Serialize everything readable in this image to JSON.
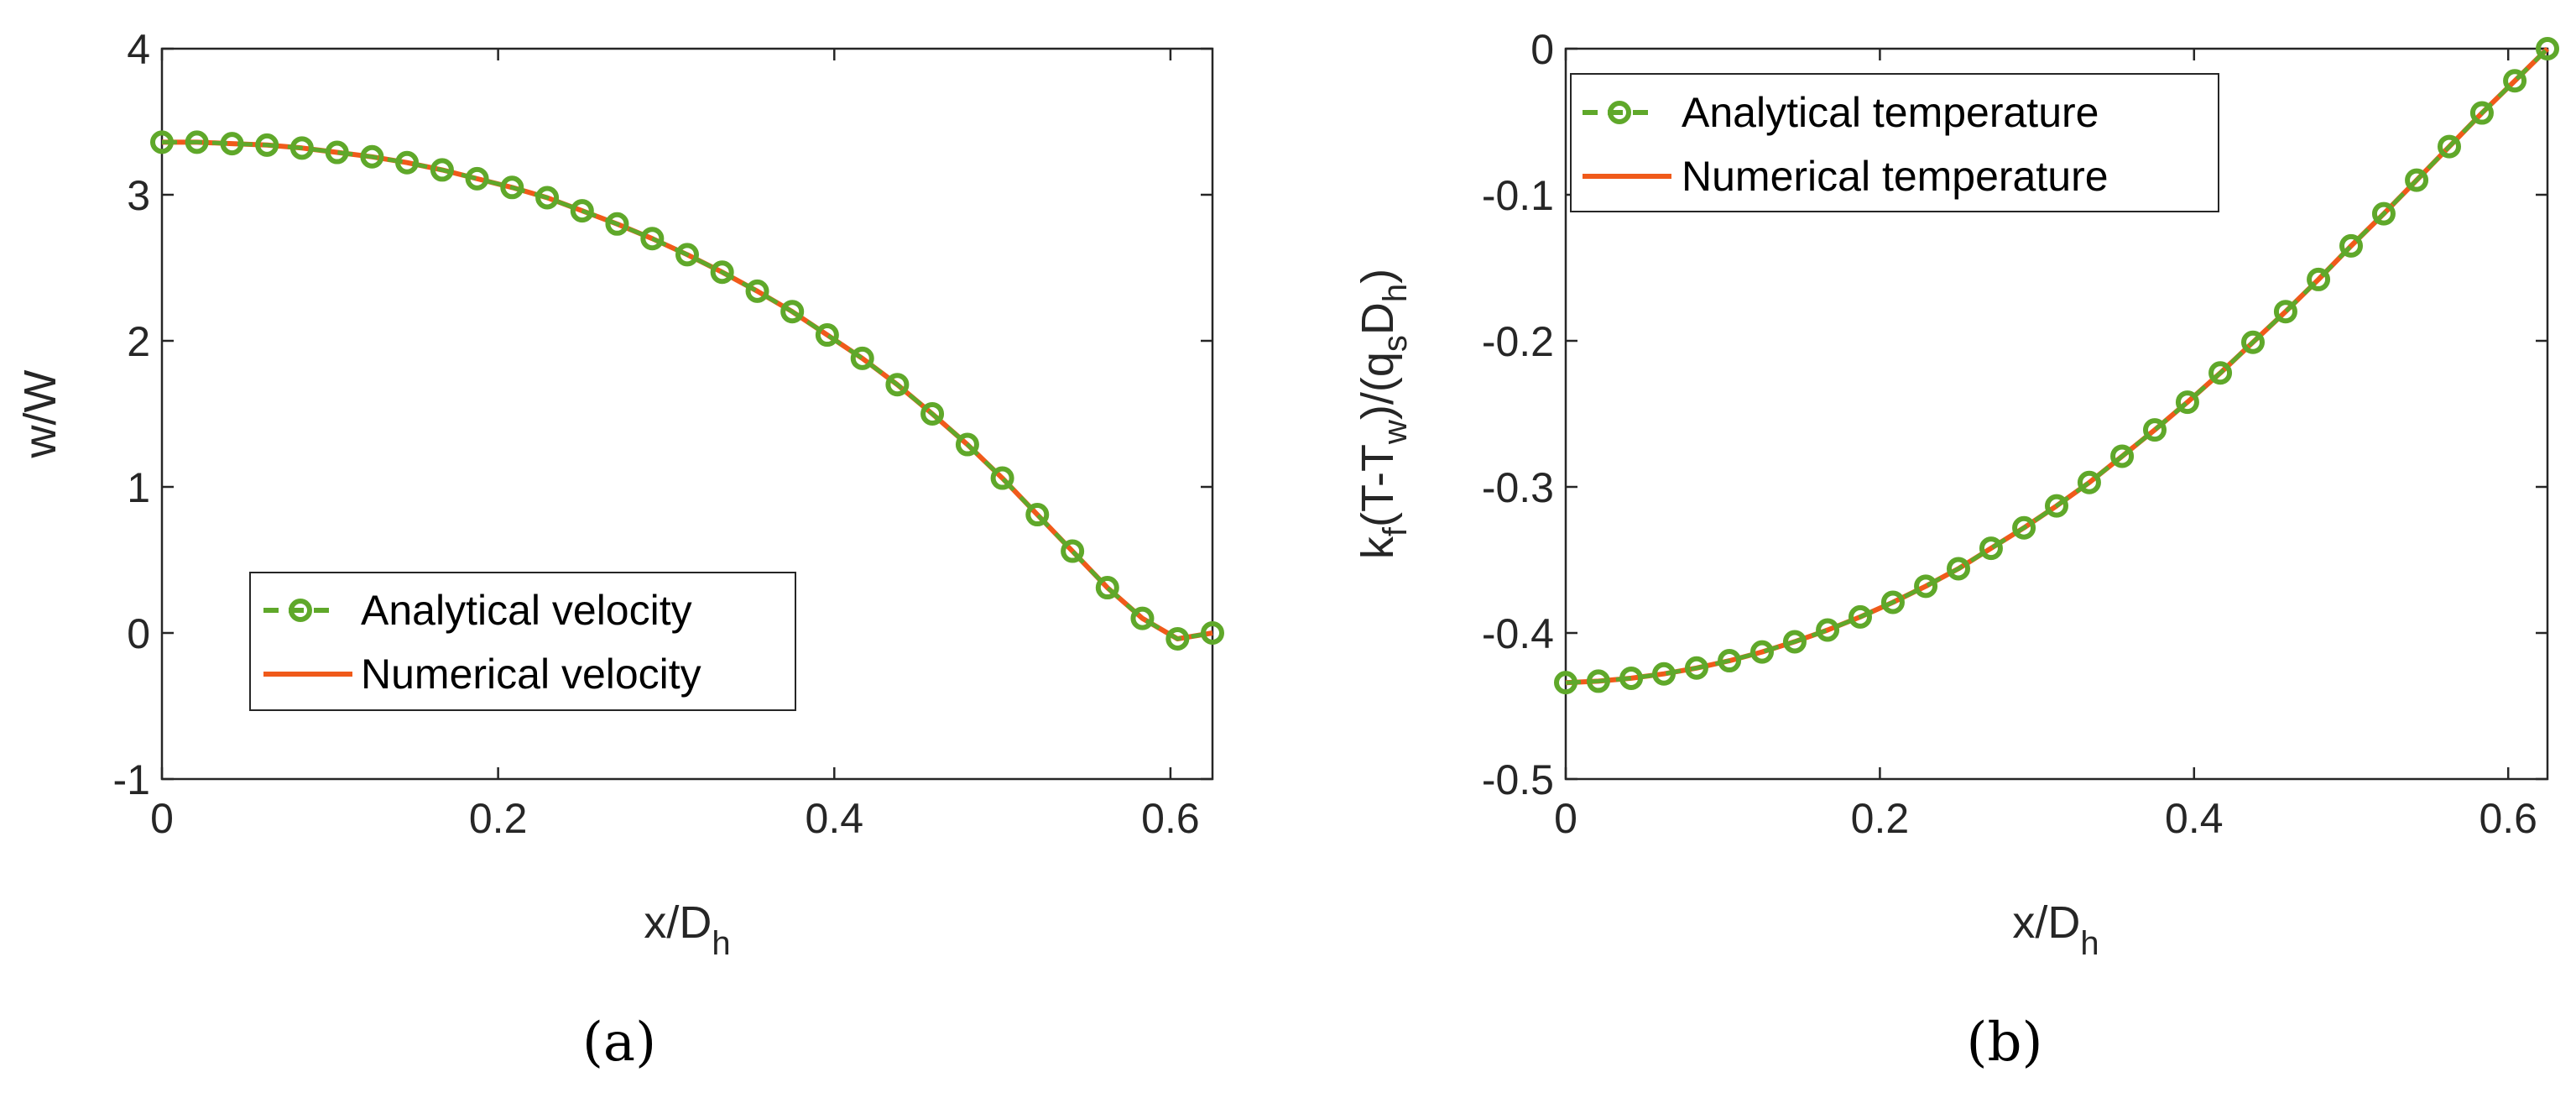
{
  "colors": {
    "analytical": "#5fa82a",
    "numerical": "#f05a1a",
    "axis": "#262626"
  },
  "chart_data": [
    {
      "type": "line",
      "panel_label": "(a)",
      "xlabel": {
        "main": "x/D",
        "sub": "h"
      },
      "ylabel": "w/W",
      "xlim": [
        0,
        0.625
      ],
      "ylim": [
        -1,
        4
      ],
      "xticks": [
        0,
        0.2,
        0.4,
        0.6
      ],
      "xtick_labels": [
        "0",
        "0.2",
        "0.4",
        "0.6"
      ],
      "yticks": [
        -1,
        0,
        1,
        2,
        3,
        4
      ],
      "ytick_labels": [
        "-1",
        "0",
        "1",
        "2",
        "3",
        "4"
      ],
      "legend_position": "bottom-left",
      "series": [
        {
          "name": "Analytical velocity",
          "style": "dashed-circle",
          "x": [
            0,
            0.0208,
            0.0417,
            0.0625,
            0.0833,
            0.1042,
            0.125,
            0.1458,
            0.1667,
            0.1875,
            0.2083,
            0.2292,
            0.25,
            0.2708,
            0.2917,
            0.3125,
            0.3333,
            0.3542,
            0.375,
            0.3958,
            0.4167,
            0.4375,
            0.4583,
            0.4792,
            0.5,
            0.5208,
            0.5417,
            0.5625,
            0.5833,
            0.6042,
            0.625
          ],
          "y": [
            3.36,
            3.36,
            3.35,
            3.34,
            3.32,
            3.29,
            3.26,
            3.22,
            3.17,
            3.11,
            3.05,
            2.98,
            2.89,
            2.8,
            2.7,
            2.59,
            2.47,
            2.34,
            2.2,
            2.04,
            1.88,
            1.7,
            1.5,
            1.29,
            1.06,
            0.81,
            0.56,
            0.31,
            0.1,
            -0.04,
            0.0
          ]
        },
        {
          "name": "Numerical velocity",
          "style": "solid",
          "x": [
            0,
            0.0208,
            0.0417,
            0.0625,
            0.0833,
            0.1042,
            0.125,
            0.1458,
            0.1667,
            0.1875,
            0.2083,
            0.2292,
            0.25,
            0.2708,
            0.2917,
            0.3125,
            0.3333,
            0.3542,
            0.375,
            0.3958,
            0.4167,
            0.4375,
            0.4583,
            0.4792,
            0.5,
            0.5208,
            0.5417,
            0.5625,
            0.5833,
            0.6042,
            0.625
          ],
          "y": [
            3.36,
            3.36,
            3.35,
            3.34,
            3.32,
            3.29,
            3.26,
            3.22,
            3.17,
            3.11,
            3.05,
            2.98,
            2.89,
            2.8,
            2.7,
            2.59,
            2.47,
            2.34,
            2.2,
            2.04,
            1.88,
            1.7,
            1.5,
            1.29,
            1.06,
            0.81,
            0.56,
            0.31,
            0.1,
            -0.04,
            0.0
          ]
        }
      ]
    },
    {
      "type": "line",
      "panel_label": "(b)",
      "xlabel": {
        "main": "x/D",
        "sub": "h"
      },
      "ylabel_parts": [
        "k",
        "f",
        "(T-T",
        "w",
        ")/(q",
        "s",
        "D",
        "h",
        ")"
      ],
      "xlim": [
        0,
        0.625
      ],
      "ylim": [
        -0.5,
        0
      ],
      "xticks": [
        0,
        0.2,
        0.4,
        0.6
      ],
      "xtick_labels": [
        "0",
        "0.2",
        "0.4",
        "0.6"
      ],
      "yticks": [
        -0.5,
        -0.4,
        -0.3,
        -0.2,
        -0.1,
        0
      ],
      "ytick_labels": [
        "-0.5",
        "-0.4",
        "-0.3",
        "-0.2",
        "-0.1",
        "0"
      ],
      "legend_position": "top-left",
      "series": [
        {
          "name": "Analytical temperature",
          "style": "dashed-circle",
          "x": [
            0,
            0.0208,
            0.0417,
            0.0625,
            0.0833,
            0.1042,
            0.125,
            0.1458,
            0.1667,
            0.1875,
            0.2083,
            0.2292,
            0.25,
            0.2708,
            0.2917,
            0.3125,
            0.3333,
            0.3542,
            0.375,
            0.3958,
            0.4167,
            0.4375,
            0.4583,
            0.4792,
            0.5,
            0.5208,
            0.5417,
            0.5625,
            0.5833,
            0.6042,
            0.625
          ],
          "y": [
            -0.434,
            -0.433,
            -0.431,
            -0.428,
            -0.424,
            -0.419,
            -0.413,
            -0.406,
            -0.398,
            -0.389,
            -0.379,
            -0.368,
            -0.356,
            -0.342,
            -0.328,
            -0.313,
            -0.297,
            -0.279,
            -0.261,
            -0.242,
            -0.222,
            -0.201,
            -0.18,
            -0.158,
            -0.135,
            -0.113,
            -0.09,
            -0.067,
            -0.044,
            -0.022,
            0.0
          ]
        },
        {
          "name": "Numerical temperature",
          "style": "solid",
          "x": [
            0,
            0.0208,
            0.0417,
            0.0625,
            0.0833,
            0.1042,
            0.125,
            0.1458,
            0.1667,
            0.1875,
            0.2083,
            0.2292,
            0.25,
            0.2708,
            0.2917,
            0.3125,
            0.3333,
            0.3542,
            0.375,
            0.3958,
            0.4167,
            0.4375,
            0.4583,
            0.4792,
            0.5,
            0.5208,
            0.5417,
            0.5625,
            0.5833,
            0.6042,
            0.625
          ],
          "y": [
            -0.434,
            -0.433,
            -0.431,
            -0.428,
            -0.424,
            -0.419,
            -0.413,
            -0.406,
            -0.398,
            -0.389,
            -0.379,
            -0.368,
            -0.356,
            -0.342,
            -0.328,
            -0.313,
            -0.297,
            -0.279,
            -0.261,
            -0.242,
            -0.222,
            -0.201,
            -0.18,
            -0.158,
            -0.135,
            -0.113,
            -0.09,
            -0.067,
            -0.044,
            -0.022,
            0.0
          ]
        }
      ]
    }
  ]
}
